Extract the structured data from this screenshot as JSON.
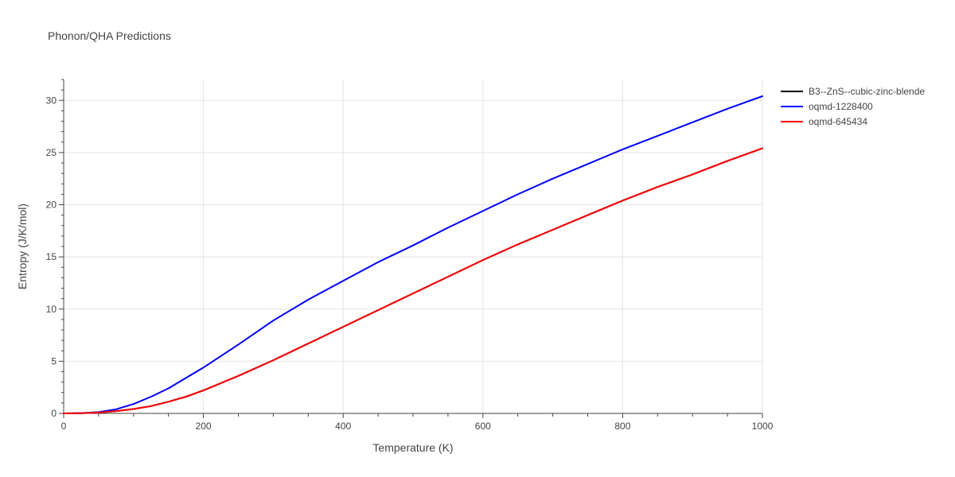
{
  "chart_data": {
    "type": "line",
    "title": "Phonon/QHA Predictions",
    "xlabel": "Temperature (K)",
    "ylabel": "Entropy (J/K/mol)",
    "xlim": [
      0,
      1000
    ],
    "ylim": [
      0,
      32
    ],
    "x_ticks": [
      0,
      200,
      400,
      600,
      800,
      1000
    ],
    "y_ticks": [
      0,
      5,
      10,
      15,
      20,
      25,
      30
    ],
    "grid": true,
    "legend_position": "top-right",
    "series": [
      {
        "name": "B3--ZnS--cubic-zinc-blende",
        "color": "#000000",
        "x": [
          0,
          25,
          50,
          75,
          100,
          125,
          150,
          175,
          200,
          250,
          300,
          350,
          400,
          450,
          500,
          550,
          600,
          650,
          700,
          750,
          800,
          850,
          900,
          950,
          1000
        ],
        "y": [
          0,
          0.02,
          0.08,
          0.22,
          0.42,
          0.7,
          1.12,
          1.6,
          2.2,
          3.6,
          5.1,
          6.7,
          8.3,
          9.9,
          11.5,
          13.1,
          14.7,
          16.2,
          17.6,
          19.0,
          20.4,
          21.7,
          22.9,
          24.2,
          25.4
        ]
      },
      {
        "name": "oqmd-1228400",
        "color": "#0000ff",
        "x": [
          0,
          25,
          50,
          75,
          100,
          125,
          150,
          175,
          200,
          250,
          300,
          350,
          400,
          450,
          500,
          550,
          600,
          650,
          700,
          750,
          800,
          850,
          900,
          950,
          1000
        ],
        "y": [
          0,
          0.03,
          0.12,
          0.4,
          0.9,
          1.6,
          2.4,
          3.4,
          4.4,
          6.6,
          8.9,
          10.9,
          12.7,
          14.5,
          16.1,
          17.8,
          19.4,
          21.0,
          22.5,
          23.9,
          25.3,
          26.6,
          27.9,
          29.2,
          30.4
        ]
      },
      {
        "name": "oqmd-645434",
        "color": "#ff0000",
        "x": [
          0,
          25,
          50,
          75,
          100,
          125,
          150,
          175,
          200,
          250,
          300,
          350,
          400,
          450,
          500,
          550,
          600,
          650,
          700,
          750,
          800,
          850,
          900,
          950,
          1000
        ],
        "y": [
          0,
          0.02,
          0.08,
          0.22,
          0.42,
          0.7,
          1.12,
          1.6,
          2.2,
          3.6,
          5.1,
          6.7,
          8.3,
          9.9,
          11.5,
          13.1,
          14.7,
          16.2,
          17.6,
          19.0,
          20.4,
          21.7,
          22.9,
          24.2,
          25.4
        ]
      }
    ]
  }
}
